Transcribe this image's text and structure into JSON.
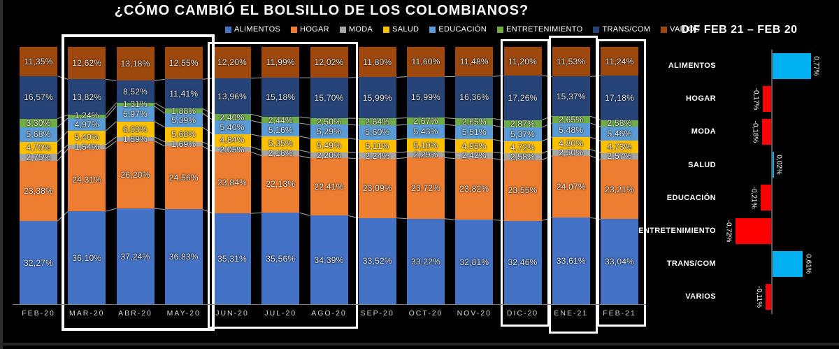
{
  "title": "¿CÓMO CAMBIÓ EL BOLSILLO DE LOS COLOMBIANOS?",
  "chart_data": [
    {
      "type": "bar",
      "variant": "stacked-100-percent",
      "title": "¿CÓMO CAMBIÓ EL BOLSILLO DE LOS COLOMBIANOS?",
      "legend_position": "top",
      "value_format": "percent-comma-2dp",
      "categories": [
        "FEB-20",
        "MAR-20",
        "ABR-20",
        "MAY-20",
        "JUN-20",
        "JUL-20",
        "AGO-20",
        "SEP-20",
        "OCT-20",
        "NOV-20",
        "DIC-20",
        "ENE-21",
        "FEB-21"
      ],
      "series": [
        {
          "name": "ALIMENTOS",
          "color": "#4472C4",
          "values": [
            32.27,
            36.1,
            37.24,
            36.83,
            35.31,
            35.56,
            34.39,
            33.52,
            33.22,
            32.81,
            32.46,
            33.61,
            33.04
          ]
        },
        {
          "name": "HOGAR",
          "color": "#ED7D31",
          "values": [
            23.38,
            24.31,
            26.2,
            24.56,
            23.84,
            22.13,
            22.41,
            23.09,
            23.72,
            23.82,
            23.55,
            24.07,
            23.21
          ]
        },
        {
          "name": "MODA",
          "color": "#A5A5A5",
          "values": [
            2.75,
            1.54,
            1.59,
            1.69,
            2.05,
            2.18,
            2.2,
            2.24,
            2.29,
            2.42,
            2.58,
            2.5,
            2.57
          ]
        },
        {
          "name": "SALUD",
          "color": "#FFC000",
          "values": [
            4.7,
            5.4,
            6.0,
            5.68,
            4.84,
            5.35,
            5.49,
            5.11,
            5.1,
            4.95,
            4.72,
            4.8,
            4.73
          ]
        },
        {
          "name": "EDUCACIÓN",
          "color": "#5B9BD5",
          "values": [
            5.68,
            4.97,
            5.97,
            5.39,
            5.4,
            5.16,
            5.29,
            5.6,
            5.43,
            5.51,
            5.37,
            5.48,
            5.46
          ]
        },
        {
          "name": "ENTRETENIMIENTO",
          "color": "#70AD47",
          "values": [
            3.3,
            1.24,
            1.31,
            1.88,
            2.4,
            2.44,
            2.5,
            2.64,
            2.67,
            2.65,
            2.87,
            2.65,
            2.58
          ]
        },
        {
          "name": "TRANS/COM",
          "color": "#264478",
          "values": [
            16.57,
            13.82,
            8.52,
            11.41,
            13.96,
            15.18,
            15.7,
            15.99,
            15.99,
            16.36,
            17.26,
            15.37,
            17.18
          ]
        },
        {
          "name": "VARIOS",
          "color": "#9E480E",
          "values": [
            11.35,
            12.62,
            13.18,
            12.55,
            12.2,
            11.99,
            12.02,
            11.8,
            11.6,
            11.48,
            11.2,
            11.53,
            11.24
          ]
        }
      ],
      "highlighted_periods": [
        {
          "from": "MAR-20",
          "to": "MAY-20"
        },
        {
          "from": "JUN-20",
          "to": "AGO-20"
        },
        {
          "from": "DIC-20",
          "to": "DIC-20"
        },
        {
          "from": "ENE-21",
          "to": "ENE-21"
        },
        {
          "from": "FEB-21",
          "to": "FEB-21"
        }
      ]
    },
    {
      "type": "bar",
      "orientation": "horizontal",
      "title": "DIF FEB 21 – FEB 20",
      "categories": [
        "ALIMENTOS",
        "HOGAR",
        "MODA",
        "SALUD",
        "EDUCACIÓN",
        "ENTRETENIMIENTO",
        "TRANS/COM",
        "VARIOS"
      ],
      "values": [
        0.77,
        -0.17,
        -0.18,
        0.02,
        -0.21,
        -0.72,
        0.61,
        -0.11
      ],
      "positive_color": "#00B0F0",
      "negative_color": "#FF0000",
      "value_format": "percent-comma-2dp"
    }
  ]
}
